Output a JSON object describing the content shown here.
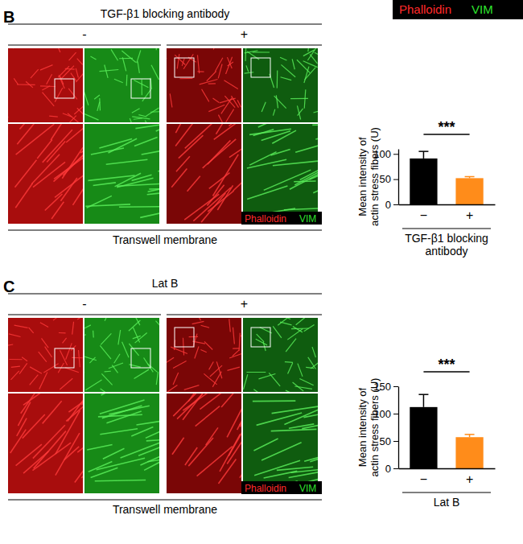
{
  "legend": {
    "labels": [
      "Phalloidin",
      "VIM"
    ],
    "colors": [
      "#ff2a2a",
      "#2ee02e"
    ]
  },
  "panels": [
    {
      "label": "B",
      "title": "TGF-β1 blocking antibody",
      "conditions": [
        "-",
        "+"
      ],
      "channels": [
        "Phalloidin",
        "VIM"
      ],
      "footer": "Transwell membrane"
    },
    {
      "label": "C",
      "title": "Lat B",
      "conditions": [
        "-",
        "+"
      ],
      "channels": [
        "Phalloidin",
        "VIM"
      ],
      "footer": "Transwell membrane"
    }
  ],
  "chart_data": [
    {
      "type": "bar",
      "categories": [
        "−",
        "+"
      ],
      "values": [
        91,
        52
      ],
      "errors": [
        14,
        3
      ],
      "colors": [
        "#000000",
        "#ff8c1a"
      ],
      "ylim": [
        0,
        110
      ],
      "yticks": [
        0,
        50,
        100
      ],
      "ylabel": [
        "Mean intensity of",
        "actin stress fibers (U)"
      ],
      "xlabel": [
        "TGF-β1 blocking",
        "antibody"
      ],
      "significance": "***"
    },
    {
      "type": "bar",
      "categories": [
        "−",
        "+"
      ],
      "values": [
        112,
        57
      ],
      "errors": [
        23,
        5
      ],
      "colors": [
        "#000000",
        "#ff8c1a"
      ],
      "ylim": [
        0,
        150
      ],
      "yticks": [
        0,
        50,
        100,
        150
      ],
      "ylabel": [
        "Mean intensity of",
        "actin stress fibers (U)"
      ],
      "xlabel": [
        "Lat B"
      ],
      "significance": "***"
    }
  ]
}
